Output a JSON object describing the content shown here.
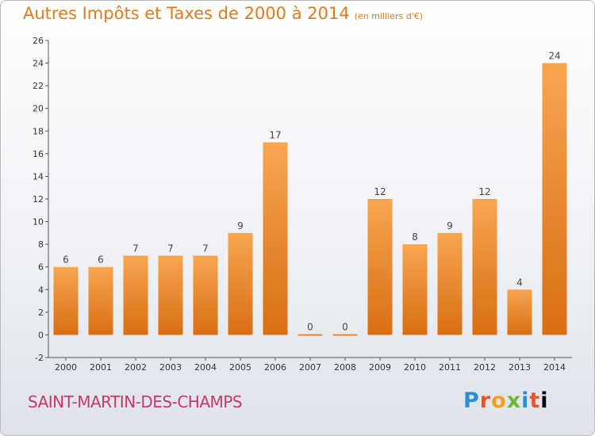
{
  "header": {
    "title": "Autres Impôts et Taxes de 2000 à 2014",
    "subtitle": "(en milliers d'€)"
  },
  "footer": {
    "commune": "SAINT-MARTIN-DES-CHAMPS",
    "logo_letters": [
      "P",
      "r",
      "o",
      "x",
      "i",
      "t",
      "i"
    ]
  },
  "colors": {
    "bar_light": "#f7a650",
    "bar_dark": "#d86e14",
    "title": "#e07a1c",
    "commune": "#c8386b"
  },
  "chart_data": {
    "type": "bar",
    "title": "Autres Impôts et Taxes de 2000 à 2014",
    "subtitle": "(en milliers d'€)",
    "categories": [
      "2000",
      "2001",
      "2002",
      "2003",
      "2004",
      "2005",
      "2006",
      "2007",
      "2008",
      "2009",
      "2010",
      "2011",
      "2012",
      "2013",
      "2014"
    ],
    "values": [
      6,
      6,
      7,
      7,
      7,
      9,
      17,
      0,
      0,
      12,
      8,
      9,
      12,
      4,
      24
    ],
    "ylim": [
      -2,
      26
    ],
    "yticks": [
      -2,
      0,
      2,
      4,
      6,
      8,
      10,
      12,
      14,
      16,
      18,
      20,
      22,
      24,
      26
    ],
    "grid": false,
    "xlabel": "",
    "ylabel": ""
  }
}
